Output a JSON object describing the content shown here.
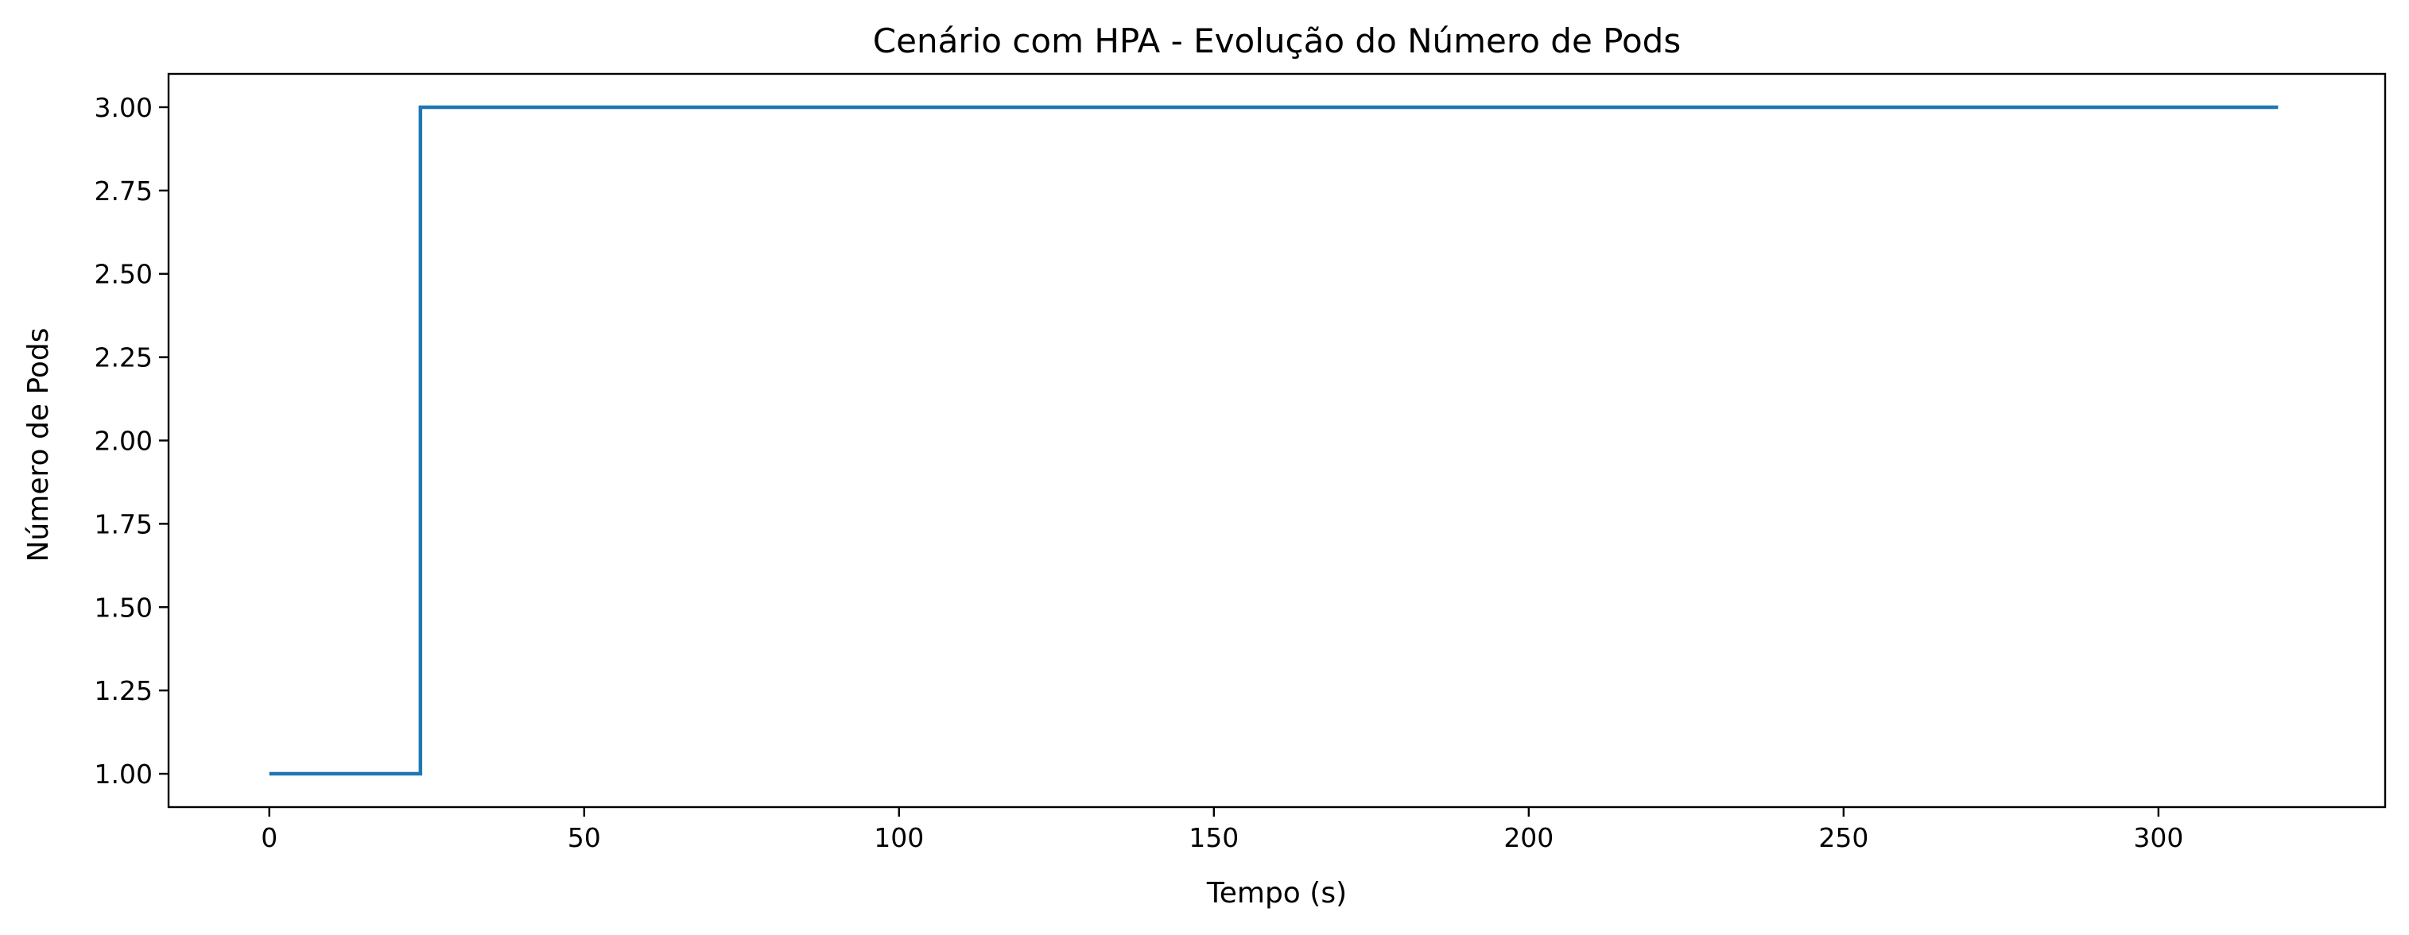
{
  "chart_data": {
    "type": "line",
    "drawstyle": "step-post",
    "title": "Cenário com HPA - Evolução do Número de Pods",
    "xlabel": "Tempo (s)",
    "ylabel": "Número de Pods",
    "xlim": [
      -16,
      336
    ],
    "ylim": [
      0.9,
      3.1
    ],
    "xticks": [
      0,
      50,
      100,
      150,
      200,
      250,
      300
    ],
    "yticks": [
      1.0,
      1.25,
      1.5,
      1.75,
      2.0,
      2.25,
      2.5,
      2.75,
      3.0
    ],
    "xtick_labels": [
      "0",
      "50",
      "100",
      "150",
      "200",
      "250",
      "300"
    ],
    "ytick_labels": [
      "1.00",
      "1.25",
      "1.50",
      "1.75",
      "2.00",
      "2.25",
      "2.50",
      "2.75",
      "3.00"
    ],
    "grid": false,
    "legend": "none",
    "series": [
      {
        "color": "#1f77b4",
        "x": [
          0,
          24,
          319
        ],
        "y": [
          1,
          3,
          3
        ]
      }
    ]
  }
}
